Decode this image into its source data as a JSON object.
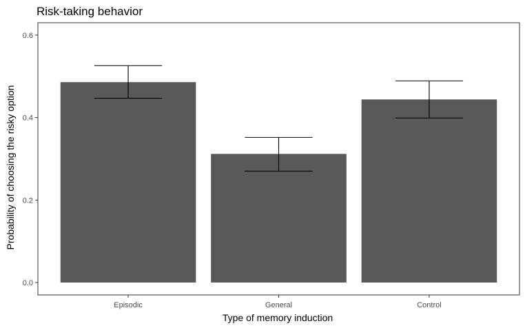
{
  "chart_data": {
    "type": "bar",
    "title": "Risk-taking behavior",
    "xlabel": "Type of memory induction",
    "ylabel": "Probability of choosing the risky option",
    "categories": [
      "Episodic",
      "General",
      "Control"
    ],
    "values": [
      0.486,
      0.312,
      0.444
    ],
    "error_low": [
      0.447,
      0.27,
      0.399
    ],
    "error_high": [
      0.526,
      0.352,
      0.489
    ],
    "ylim": [
      -0.03,
      0.63
    ],
    "yticks": [
      0.0,
      0.2,
      0.4,
      0.6
    ],
    "ytick_labels": [
      "0.0",
      "0.2",
      "0.4",
      "0.6"
    ],
    "grid": false,
    "legend": "none",
    "colors": {
      "bar": "#595959",
      "errorbar": "#000000",
      "panel_border": "#333333",
      "tick": "#333333"
    }
  }
}
